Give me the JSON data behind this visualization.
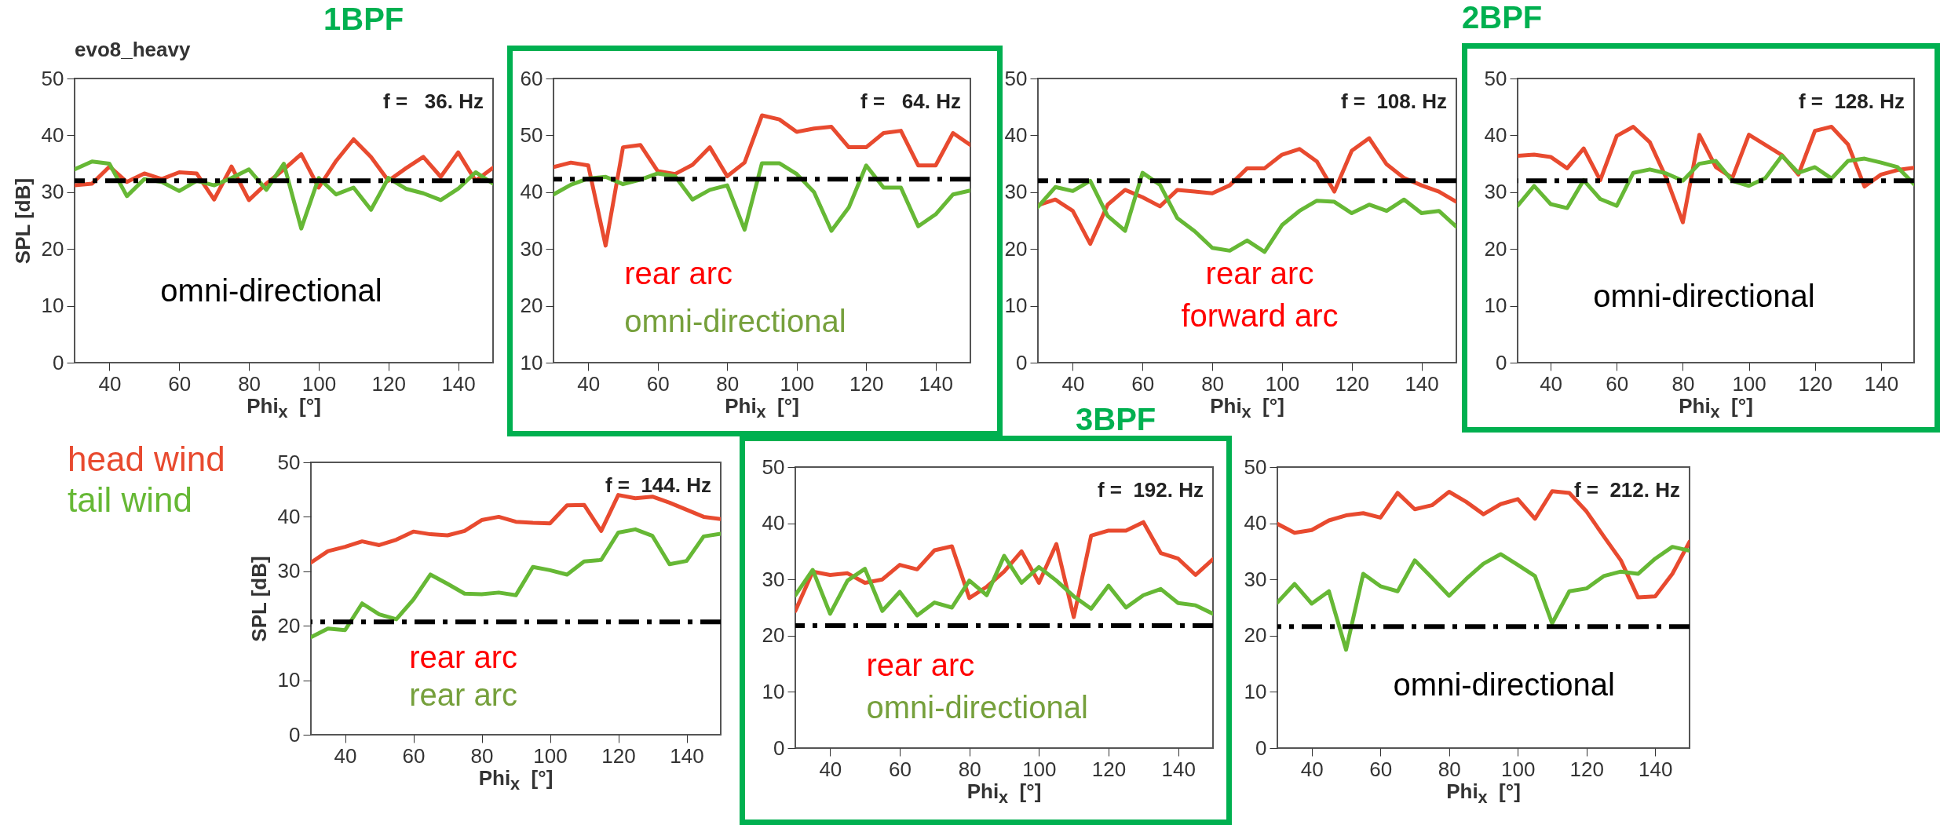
{
  "chart_data": [
    {
      "type": "line",
      "title": "evo8_heavy",
      "xlabel": "Phi$_{x}$  [°]",
      "ylabel": "SPL [dB]",
      "x": [
        30,
        35,
        40,
        45,
        50,
        55,
        60,
        65,
        70,
        75,
        80,
        85,
        90,
        95,
        100,
        105,
        110,
        115,
        120,
        125,
        130,
        135,
        140,
        145,
        150
      ],
      "xlim": [
        30,
        150
      ],
      "xticks": [
        40,
        60,
        80,
        100,
        120,
        140
      ],
      "ylim": [
        0,
        50
      ],
      "yticks": [
        0,
        10,
        20,
        30,
        40,
        50
      ],
      "annotations": [
        "f =   36. Hz",
        "omni-directional"
      ],
      "ref_lines": [
        {
          "axis": "y",
          "value": 32,
          "color": "#000000",
          "line_style": "dashed"
        }
      ],
      "series": [
        {
          "color": "#e84a2f",
          "values": [
            31.2,
            31.5,
            34.5,
            31.8,
            33.3,
            32.3,
            33.5,
            33.3,
            28.7,
            34.5,
            28.6,
            31.5,
            34,
            36.7,
            30.8,
            35.5,
            39.3,
            36.2,
            32,
            34.2,
            36.2,
            32.7,
            37,
            32,
            34.3
          ]
        },
        {
          "color": "#66b835",
          "values": [
            34,
            35.4,
            35,
            29.3,
            32.3,
            31.8,
            30.2,
            32,
            31.2,
            32.5,
            34,
            30.4,
            35,
            23.6,
            32.5,
            29.6,
            30.8,
            26.9,
            32.5,
            30.6,
            29.8,
            28.6,
            30.6,
            33.5,
            31.5
          ]
        }
      ]
    },
    {
      "type": "line",
      "xlabel": "Phi$_{x}$  [°]",
      "x": [
        30,
        35,
        40,
        45,
        50,
        55,
        60,
        65,
        70,
        75,
        80,
        85,
        90,
        95,
        100,
        105,
        110,
        115,
        120,
        125,
        130,
        135,
        140,
        145,
        150
      ],
      "xlim": [
        30,
        150
      ],
      "xticks": [
        40,
        60,
        80,
        100,
        120,
        140
      ],
      "ylim": [
        10,
        60
      ],
      "yticks": [
        10,
        20,
        30,
        40,
        50,
        60
      ],
      "annotations": [
        "1BPF",
        "f =   64. Hz",
        "rear arc",
        "omni-directional"
      ],
      "ref_lines": [
        {
          "axis": "y",
          "value": 42.3,
          "color": "#000000",
          "line_style": "dashed"
        }
      ],
      "series": [
        {
          "color": "#e84a2f",
          "values": [
            44.4,
            45.2,
            44.7,
            30.6,
            47.9,
            48.3,
            43.7,
            43.2,
            44.8,
            47.9,
            42.8,
            45.2,
            53.5,
            52.8,
            50.6,
            51.2,
            51.5,
            47.9,
            47.9,
            50.4,
            50.8,
            44.7,
            44.7,
            50.4,
            48.3
          ]
        },
        {
          "color": "#66b835",
          "values": [
            39.6,
            41.3,
            42.4,
            42.7,
            41.4,
            42.2,
            43.3,
            42.8,
            38.7,
            40.4,
            41.2,
            33.4,
            45.1,
            45.1,
            43.2,
            40,
            33.2,
            37.3,
            44.7,
            40.8,
            40.8,
            34,
            36.1,
            39.6,
            40.3
          ]
        }
      ]
    },
    {
      "type": "line",
      "xlabel": "Phi$_{x}$  [°]",
      "x": [
        30,
        35,
        40,
        45,
        50,
        55,
        60,
        65,
        70,
        75,
        80,
        85,
        90,
        95,
        100,
        105,
        110,
        115,
        120,
        125,
        130,
        135,
        140,
        145,
        150
      ],
      "xlim": [
        30,
        150
      ],
      "xticks": [
        40,
        60,
        80,
        100,
        120,
        140
      ],
      "ylim": [
        0,
        50
      ],
      "yticks": [
        0,
        10,
        20,
        30,
        40,
        50
      ],
      "annotations": [
        "f =  108. Hz",
        "rear arc",
        "forward arc"
      ],
      "ref_lines": [
        {
          "axis": "y",
          "value": 32,
          "color": "#000000",
          "line_style": "dashed"
        }
      ],
      "series": [
        {
          "color": "#e84a2f",
          "values": [
            27.7,
            28.7,
            26.7,
            20.9,
            27.8,
            30.4,
            29.1,
            27.5,
            30.4,
            30.1,
            29.8,
            31.2,
            34.2,
            34.2,
            36.6,
            37.6,
            35.4,
            30.1,
            37.3,
            39.5,
            34.9,
            32.5,
            31.2,
            30.1,
            28.3
          ]
        },
        {
          "color": "#66b835",
          "values": [
            27.4,
            30.9,
            30.2,
            32,
            25.8,
            23.2,
            33.4,
            31.3,
            25.4,
            23.1,
            20.2,
            19.7,
            21.5,
            19.5,
            24.2,
            26.7,
            28.5,
            28.3,
            26.3,
            27.8,
            26.7,
            28.7,
            26.3,
            26.7,
            23.9
          ]
        }
      ]
    },
    {
      "type": "line",
      "xlabel": "Phi$_{x}$  [°]",
      "x": [
        30,
        35,
        40,
        45,
        50,
        55,
        60,
        65,
        70,
        75,
        80,
        85,
        90,
        95,
        100,
        105,
        110,
        115,
        120,
        125,
        130,
        135,
        140,
        145,
        150
      ],
      "xlim": [
        30,
        150
      ],
      "xticks": [
        40,
        60,
        80,
        100,
        120,
        140
      ],
      "ylim": [
        0,
        50
      ],
      "yticks": [
        0,
        10,
        20,
        30,
        40,
        50
      ],
      "annotations": [
        "2BPF",
        "f =  128. Hz",
        "omni-directional"
      ],
      "ref_lines": [
        {
          "axis": "y",
          "value": 32,
          "color": "#000000",
          "line_style": "dashed"
        }
      ],
      "series": [
        {
          "color": "#e84a2f",
          "values": [
            36.4,
            36.6,
            36.2,
            34.2,
            37.7,
            32.1,
            39.9,
            41.5,
            38.8,
            32.5,
            24.7,
            40.1,
            34.4,
            32.5,
            40.1,
            38.3,
            36.5,
            33.1,
            40.8,
            41.5,
            38.4,
            31,
            33.1,
            33.9,
            34.3
          ]
        },
        {
          "color": "#66b835",
          "values": [
            27.6,
            31.1,
            27.9,
            27.2,
            32.1,
            28.8,
            27.6,
            33.4,
            34,
            33.3,
            32,
            35,
            35.5,
            32,
            31.1,
            32.5,
            36.4,
            33.4,
            34.4,
            32.4,
            35.5,
            35.9,
            35.2,
            34.4,
            31.4
          ]
        }
      ]
    },
    {
      "type": "line",
      "xlabel": "Phi$_{x}$  [°]",
      "ylabel": "SPL [dB]",
      "legend": "left",
      "x": [
        30,
        35,
        40,
        45,
        50,
        55,
        60,
        65,
        70,
        75,
        80,
        85,
        90,
        95,
        100,
        105,
        110,
        115,
        120,
        125,
        130,
        135,
        140,
        145,
        150
      ],
      "xlim": [
        30,
        150
      ],
      "xticks": [
        40,
        60,
        80,
        100,
        120,
        140
      ],
      "ylim": [
        0,
        50
      ],
      "yticks": [
        0,
        10,
        20,
        30,
        40,
        50
      ],
      "annotations": [
        "f =  144. Hz",
        "rear arc",
        "rear arc"
      ],
      "ref_lines": [
        {
          "axis": "y",
          "value": 20.7,
          "color": "#000000",
          "line_style": "dashed"
        }
      ],
      "series": [
        {
          "name": "head wind",
          "color": "#e84a2f",
          "values": [
            31.6,
            33.7,
            34.5,
            35.5,
            34.8,
            35.8,
            37.3,
            36.8,
            36.6,
            37.4,
            39.4,
            40,
            39.1,
            38.9,
            38.8,
            42.1,
            42.2,
            37.4,
            44,
            43.4,
            43.7,
            42.6,
            41.3,
            40,
            39.6
          ]
        },
        {
          "name": "tail wind",
          "color": "#66b835",
          "values": [
            17.9,
            19.5,
            19.2,
            24.1,
            22.1,
            21.2,
            24.8,
            29.4,
            27.7,
            25.9,
            25.8,
            26.1,
            25.6,
            30.8,
            30.2,
            29.4,
            31.8,
            32.1,
            37.1,
            37.7,
            36.5,
            31.3,
            31.9,
            36.4,
            36.9
          ]
        }
      ]
    },
    {
      "type": "line",
      "xlabel": "Phi$_{x}$  [°]",
      "x": [
        30,
        35,
        40,
        45,
        50,
        55,
        60,
        65,
        70,
        75,
        80,
        85,
        90,
        95,
        100,
        105,
        110,
        115,
        120,
        125,
        130,
        135,
        140,
        145,
        150
      ],
      "xlim": [
        30,
        150
      ],
      "xticks": [
        40,
        60,
        80,
        100,
        120,
        140
      ],
      "ylim": [
        0,
        50
      ],
      "yticks": [
        0,
        10,
        20,
        30,
        40,
        50
      ],
      "annotations": [
        "3BPF",
        "f =  192. Hz",
        "rear arc",
        "omni-directional"
      ],
      "ref_lines": [
        {
          "axis": "y",
          "value": 21.8,
          "color": "#000000",
          "line_style": "dashed"
        }
      ],
      "series": [
        {
          "color": "#e84a2f",
          "values": [
            24.4,
            31.4,
            30.8,
            31.1,
            29.4,
            30,
            32.6,
            31.8,
            35.2,
            35.9,
            26.7,
            28.7,
            31.4,
            35,
            29.4,
            36.3,
            23.3,
            37.8,
            38.7,
            38.7,
            40.2,
            34.7,
            33.7,
            30.8,
            33.6
          ]
        },
        {
          "color": "#66b835",
          "values": [
            27.2,
            31.7,
            23.9,
            29.8,
            31.9,
            24.4,
            27.8,
            23.6,
            25.9,
            25,
            29.8,
            27.2,
            34.2,
            29.4,
            32.2,
            29.8,
            27,
            24.8,
            28.9,
            25,
            27.2,
            28.3,
            25.8,
            25.4,
            23.9
          ]
        }
      ]
    },
    {
      "type": "line",
      "xlabel": "Phi$_{x}$  [°]",
      "x": [
        30,
        35,
        40,
        45,
        50,
        55,
        60,
        65,
        70,
        75,
        80,
        85,
        90,
        95,
        100,
        105,
        110,
        115,
        120,
        125,
        130,
        135,
        140,
        145,
        150
      ],
      "xlim": [
        30,
        150
      ],
      "xticks": [
        40,
        60,
        80,
        100,
        120,
        140
      ],
      "ylim": [
        0,
        50
      ],
      "yticks": [
        0,
        10,
        20,
        30,
        40,
        50
      ],
      "annotations": [
        "f =  212. Hz",
        "omni-directional"
      ],
      "ref_lines": [
        {
          "axis": "y",
          "value": 21.6,
          "color": "#000000",
          "line_style": "dashed"
        }
      ],
      "series": [
        {
          "color": "#e84a2f",
          "values": [
            39.9,
            38.3,
            38.8,
            40.5,
            41.4,
            41.8,
            41,
            45.4,
            42.5,
            43.2,
            45.6,
            43.8,
            41.6,
            43.4,
            44.3,
            40.8,
            45.7,
            45.4,
            42.1,
            37.7,
            33.4,
            26.8,
            27,
            31,
            36.7
          ]
        },
        {
          "color": "#66b835",
          "values": [
            25.9,
            29.2,
            25.7,
            27.9,
            17.5,
            31,
            28.8,
            27.9,
            33.4,
            30.3,
            27.1,
            30.1,
            32.8,
            34.5,
            32.6,
            30.6,
            22.2,
            27.9,
            28.4,
            30.6,
            31.4,
            31,
            33.7,
            35.8,
            35.1
          ]
        }
      ]
    }
  ]
}
